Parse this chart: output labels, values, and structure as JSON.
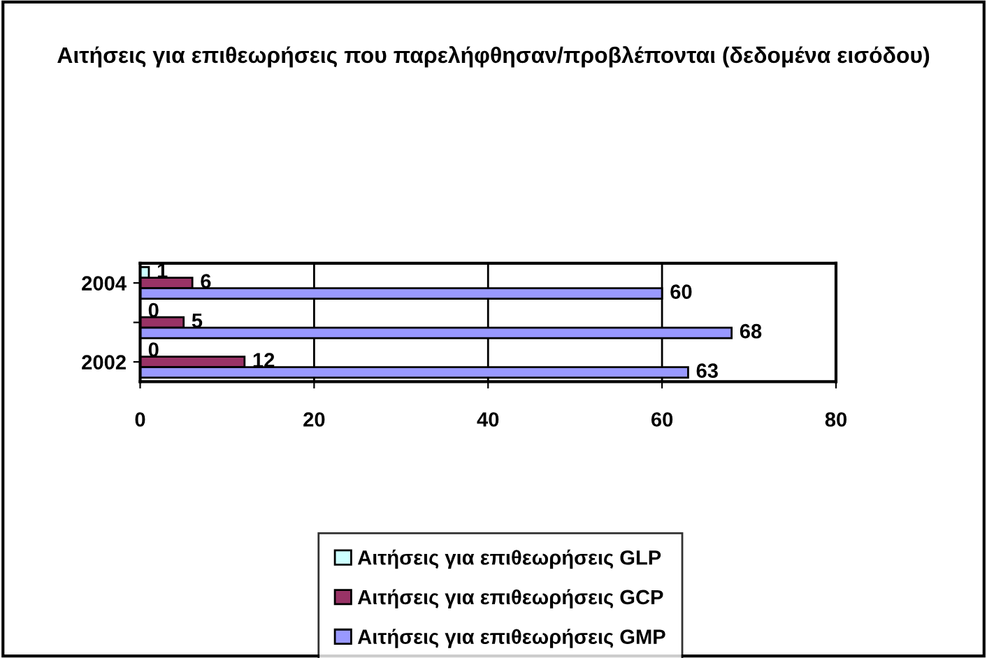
{
  "chart_data": {
    "type": "bar",
    "orientation": "horizontal",
    "title": "Αιτήσεις για επιθεωρήσεις που παρελήφθησαν/προβλέπονται (δεδομένα εισόδου)",
    "categories": [
      "2004",
      null,
      "2002"
    ],
    "series": [
      {
        "name": "Αιτήσεις για επιθεωρήσεις GLP",
        "color": "#ccffff",
        "values": [
          1,
          0,
          0
        ]
      },
      {
        "name": "Αιτήσεις για επιθεωρήσεις GCP",
        "color": "#993366",
        "values": [
          6,
          5,
          12
        ]
      },
      {
        "name": "Αιτήσεις για επιθεωρήσεις GMP",
        "color": "#9999ff",
        "values": [
          60,
          68,
          63
        ]
      }
    ],
    "xlim": [
      0,
      80
    ],
    "xticks": [
      0,
      20,
      40,
      60,
      80
    ],
    "grid": "x",
    "legend": "bottom",
    "data_labels": true
  }
}
